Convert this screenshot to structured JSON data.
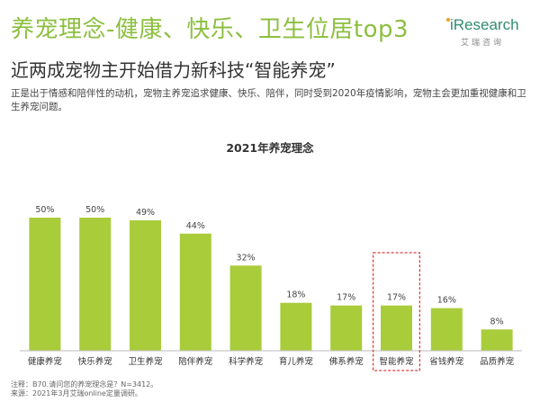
{
  "header": {
    "title": "养宠理念-健康、快乐、卫生位居top3",
    "subtitle": "近两成宠物主开始借力新科技“智能养宠”",
    "description": "正是出于情感和陪伴性的动机，宠物主养宠追求健康、快乐、陪伴，同时受到2020年疫情影响，宠物主会更加重视健康和卫生养宠问题。"
  },
  "logo": {
    "brand": "iResearch",
    "sub": "艾瑞咨询"
  },
  "chart_data": {
    "type": "bar",
    "title": "2021年养宠理念",
    "categories": [
      "健康养宠",
      "快乐养宠",
      "卫生养宠",
      "陪伴养宠",
      "科学养宠",
      "育儿养宠",
      "佛系养宠",
      "智能养宠",
      "省钱养宠",
      "品质养宠"
    ],
    "values": [
      50,
      50,
      49,
      44,
      32,
      18,
      17,
      17,
      16,
      8
    ],
    "value_labels": [
      "50%",
      "50%",
      "49%",
      "44%",
      "32%",
      "18%",
      "17%",
      "17%",
      "16%",
      "8%"
    ],
    "unit": "%",
    "ylim": [
      0,
      50
    ],
    "highlight_index": 7,
    "bar_color": "#a9cc3b",
    "highlight_border_color": "#e03c3c",
    "grid": false,
    "legend": "none"
  },
  "footer": {
    "note": "注释：B70.请问您的养宠理念是？N=3412。",
    "source": "来源：2021年3月艾瑞online定量调研。"
  }
}
